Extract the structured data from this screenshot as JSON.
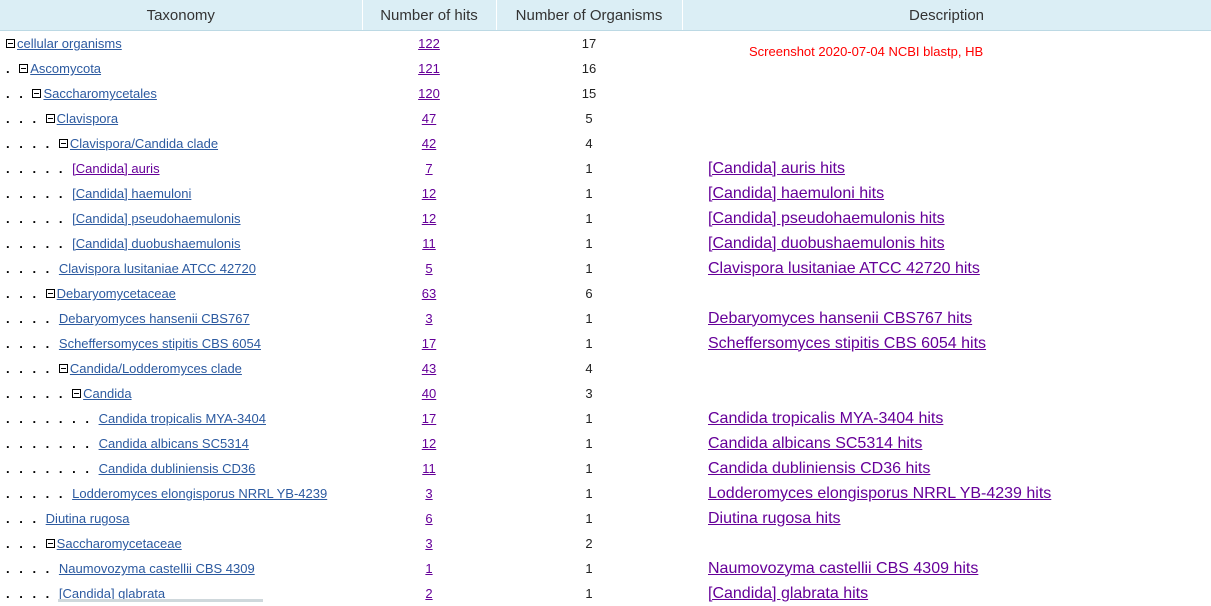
{
  "header": {
    "taxonomy": "Taxonomy",
    "hits": "Number of hits",
    "organisms": "Number of Organisms",
    "description": "Description"
  },
  "note": "Screenshot 2020-07-04 NCBI blastp, HB",
  "rows": [
    {
      "dots": "",
      "toggle": true,
      "name": "cellular organisms",
      "hits": "122",
      "orgs": "17",
      "desc": ""
    },
    {
      "dots": ". ",
      "toggle": true,
      "name": "Ascomycota",
      "hits": "121",
      "orgs": "16",
      "desc": ""
    },
    {
      "dots": ". . ",
      "toggle": true,
      "name": "Saccharomycetales",
      "hits": "120",
      "orgs": "15",
      "desc": ""
    },
    {
      "dots": ". . . ",
      "toggle": true,
      "name": "Clavispora",
      "hits": "47",
      "orgs": "5",
      "desc": ""
    },
    {
      "dots": ". . . . ",
      "toggle": true,
      "name": "Clavispora/Candida clade",
      "hits": "42",
      "orgs": "4",
      "desc": ""
    },
    {
      "dots": ". . . . . ",
      "toggle": false,
      "name": "[Candida] auris",
      "hits": "7",
      "orgs": "1",
      "desc": "[Candida] auris hits",
      "visited": true
    },
    {
      "dots": ". . . . . ",
      "toggle": false,
      "name": "[Candida] haemuloni",
      "hits": "12",
      "orgs": "1",
      "desc": "[Candida] haemuloni hits"
    },
    {
      "dots": ". . . . . ",
      "toggle": false,
      "name": "[Candida] pseudohaemulonis",
      "hits": "12",
      "orgs": "1",
      "desc": "[Candida] pseudohaemulonis hits"
    },
    {
      "dots": ". . . . . ",
      "toggle": false,
      "name": "[Candida] duobushaemulonis",
      "hits": "11",
      "orgs": "1",
      "desc": "[Candida] duobushaemulonis hits"
    },
    {
      "dots": ". . . . ",
      "toggle": false,
      "name": "Clavispora lusitaniae ATCC 42720",
      "hits": "5",
      "orgs": "1",
      "desc": "Clavispora lusitaniae ATCC 42720 hits"
    },
    {
      "dots": ". . . ",
      "toggle": true,
      "name": "Debaryomycetaceae",
      "hits": "63",
      "orgs": "6",
      "desc": ""
    },
    {
      "dots": ". . . . ",
      "toggle": false,
      "name": "Debaryomyces hansenii CBS767",
      "hits": "3",
      "orgs": "1",
      "desc": "Debaryomyces hansenii CBS767 hits"
    },
    {
      "dots": ". . . . ",
      "toggle": false,
      "name": "Scheffersomyces stipitis CBS 6054",
      "hits": "17",
      "orgs": "1",
      "desc": "Scheffersomyces stipitis CBS 6054 hits"
    },
    {
      "dots": ". . . . ",
      "toggle": true,
      "name": "Candida/Lodderomyces clade",
      "hits": "43",
      "orgs": "4",
      "desc": ""
    },
    {
      "dots": ". . . . . ",
      "toggle": true,
      "name": "Candida",
      "hits": "40",
      "orgs": "3",
      "desc": ""
    },
    {
      "dots": ". . . . . . . ",
      "toggle": false,
      "name": "Candida tropicalis MYA-3404",
      "hits": "17",
      "orgs": "1",
      "desc": "Candida tropicalis MYA-3404 hits"
    },
    {
      "dots": ". . . . . . . ",
      "toggle": false,
      "name": "Candida albicans SC5314",
      "hits": "12",
      "orgs": "1",
      "desc": "Candida albicans SC5314 hits"
    },
    {
      "dots": ". . . . . . . ",
      "toggle": false,
      "name": "Candida dubliniensis CD36",
      "hits": "11",
      "orgs": "1",
      "desc": "Candida dubliniensis CD36 hits"
    },
    {
      "dots": ". . . . . ",
      "toggle": false,
      "name": "Lodderomyces elongisporus NRRL YB-4239",
      "hits": "3",
      "orgs": "1",
      "desc": "Lodderomyces elongisporus NRRL YB-4239 hits"
    },
    {
      "dots": ". . . ",
      "toggle": false,
      "name": "Diutina rugosa",
      "hits": "6",
      "orgs": "1",
      "desc": "Diutina rugosa hits"
    },
    {
      "dots": ". . . ",
      "toggle": true,
      "name": "Saccharomycetaceae",
      "hits": "3",
      "orgs": "2",
      "desc": ""
    },
    {
      "dots": ". . . . ",
      "toggle": false,
      "name": "Naumovozyma castellii CBS 4309",
      "hits": "1",
      "orgs": "1",
      "desc": "Naumovozyma castellii CBS 4309 hits"
    },
    {
      "dots": ". . . . ",
      "toggle": false,
      "name": "[Candida] glabrata",
      "hits": "2",
      "orgs": "1",
      "desc": "[Candida] glabrata hits"
    }
  ]
}
